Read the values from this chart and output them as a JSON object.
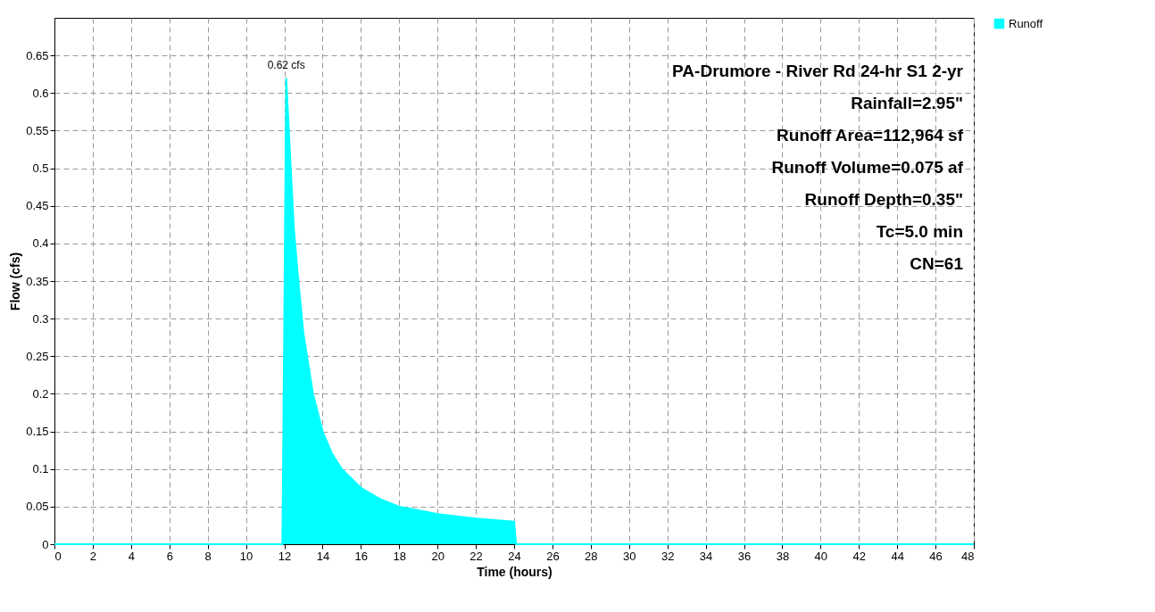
{
  "chart_data": {
    "type": "area",
    "xlabel": "Time  (hours)",
    "ylabel": "Flow  (cfs)",
    "x": [
      0,
      11.9,
      12.0,
      12.1,
      12.3,
      12.5,
      12.7,
      13,
      13.5,
      14,
      14.5,
      15,
      16,
      17,
      18,
      19,
      20,
      21,
      22,
      23,
      24,
      24.1,
      48
    ],
    "series": [
      {
        "name": "Runoff",
        "color": "#00ffff",
        "values": [
          0,
          0,
          0.3,
          0.62,
          0.52,
          0.42,
          0.36,
          0.28,
          0.2,
          0.15,
          0.12,
          0.1,
          0.075,
          0.06,
          0.05,
          0.045,
          0.04,
          0.037,
          0.034,
          0.032,
          0.03,
          0,
          0
        ]
      }
    ],
    "xlim": [
      0,
      48
    ],
    "xticks": [
      0,
      2,
      4,
      6,
      8,
      10,
      12,
      14,
      16,
      18,
      20,
      22,
      24,
      26,
      28,
      30,
      32,
      34,
      36,
      38,
      40,
      42,
      44,
      46,
      48
    ],
    "ylim": [
      0,
      0.7
    ],
    "yticks": [
      0,
      0.05,
      0.1,
      0.15,
      0.2,
      0.25,
      0.3,
      0.35,
      0.4,
      0.45,
      0.5,
      0.55,
      0.6,
      0.65
    ],
    "grid": true,
    "legend": "top right",
    "annotations": [
      {
        "text": "0.62 cfs",
        "x": 12.1,
        "y": 0.62
      },
      "PA-Drumore - River Rd 24-hr S1 2-yr",
      "Rainfall=2.95\"",
      "Runoff Area=112,964 sf",
      "Runoff Volume=0.075 af",
      "Runoff Depth=0.35\"",
      "Tc=5.0 min",
      "CN=61"
    ]
  }
}
